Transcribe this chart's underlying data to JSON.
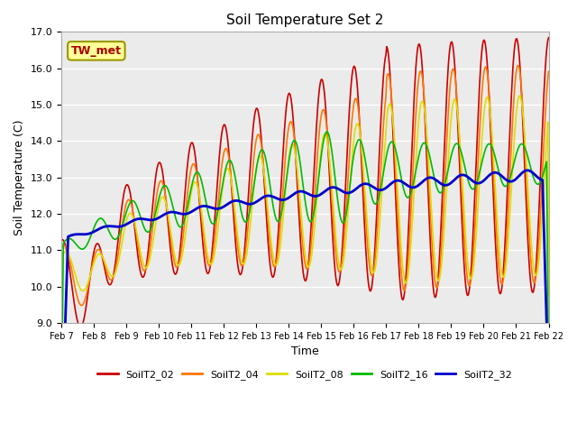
{
  "title": "Soil Temperature Set 2",
  "xlabel": "Time",
  "ylabel": "Soil Temperature (C)",
  "ylim": [
    9.0,
    17.0
  ],
  "yticks": [
    9.0,
    10.0,
    11.0,
    12.0,
    13.0,
    14.0,
    15.0,
    16.0,
    17.0
  ],
  "ytick_labels": [
    "9.0",
    "10.0",
    "11.0",
    "12.0",
    "13.0",
    "14.0",
    "15.0",
    "16.0",
    "17.0"
  ],
  "bg_color": "#ebebeb",
  "fig_color": "#ffffff",
  "annotation_text": "TW_met",
  "annotation_color": "#aa0000",
  "annotation_bg": "#ffff99",
  "annotation_border": "#999900",
  "series": [
    {
      "label": "SoilT2_02",
      "color": "#cc0000",
      "lw": 1.2
    },
    {
      "label": "SoilT2_04",
      "color": "#ff7700",
      "lw": 1.2
    },
    {
      "label": "SoilT2_08",
      "color": "#dddd00",
      "lw": 1.2
    },
    {
      "label": "SoilT2_16",
      "color": "#00bb00",
      "lw": 1.2
    },
    {
      "label": "SoilT2_32",
      "color": "#0000cc",
      "lw": 2.0
    }
  ],
  "xtick_labels": [
    "Feb 7",
    "Feb 8",
    "Feb 9",
    "Feb 10",
    "Feb 11",
    "Feb 12",
    "Feb 13",
    "Feb 14",
    "Feb 15",
    "Feb 16",
    "Feb 17",
    "Feb 18",
    "Feb 19",
    "Feb 20",
    "Feb 21",
    "Feb 22"
  ],
  "n_points": 720
}
